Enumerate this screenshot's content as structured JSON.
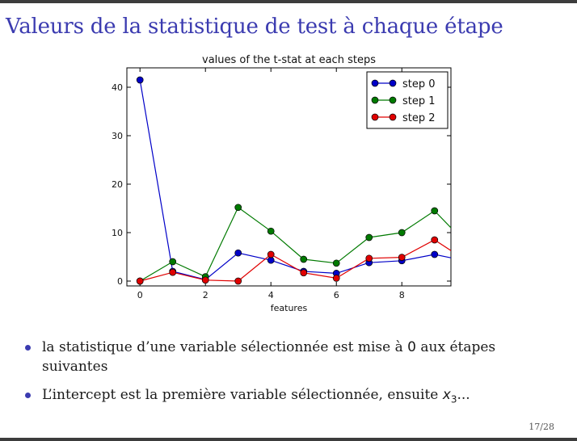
{
  "slide": {
    "title": "Valeurs de la statistique de test à chaque étape",
    "bullets": [
      {
        "before": "la statistique d’une variable sélectionnée est mise à ",
        "code": "0",
        "after": " aux étapes suivantes"
      },
      {
        "before": "L’intercept est la première variable sélectionnée, ensuite ",
        "var": "x",
        "sub": "3",
        "after": "..."
      }
    ],
    "page": "17/28"
  },
  "colors": {
    "title": "#3b3bb0",
    "step0": "#0000c8",
    "step1": "#007a00",
    "step2": "#e00000"
  },
  "chart_data": {
    "type": "line",
    "title": "values of the t-stat at each steps",
    "xlabel": "features",
    "ylabel": "",
    "xlim": [
      -0.4,
      9.5
    ],
    "ylim": [
      -1,
      44
    ],
    "xticks": [
      0,
      2,
      4,
      6,
      8
    ],
    "yticks": [
      0,
      10,
      20,
      30,
      40
    ],
    "grid": false,
    "legend_position": "top-right",
    "x": [
      0,
      1,
      2,
      3,
      4,
      5,
      6,
      7,
      8,
      9,
      9.5
    ],
    "series": [
      {
        "name": "step 0",
        "color": "#0000c8",
        "values": [
          41.5,
          2.0,
          0.3,
          5.8,
          4.3,
          2.0,
          1.6,
          3.8,
          4.2,
          5.5,
          4.8
        ]
      },
      {
        "name": "step 1",
        "color": "#007a00",
        "values": [
          0,
          4.0,
          0.9,
          15.2,
          10.3,
          4.5,
          3.7,
          9.0,
          10.0,
          14.5,
          11.0
        ]
      },
      {
        "name": "step 2",
        "color": "#e00000",
        "values": [
          0,
          1.8,
          0.2,
          0.0,
          5.5,
          1.7,
          0.6,
          4.7,
          4.9,
          8.5,
          6.3
        ]
      }
    ]
  }
}
